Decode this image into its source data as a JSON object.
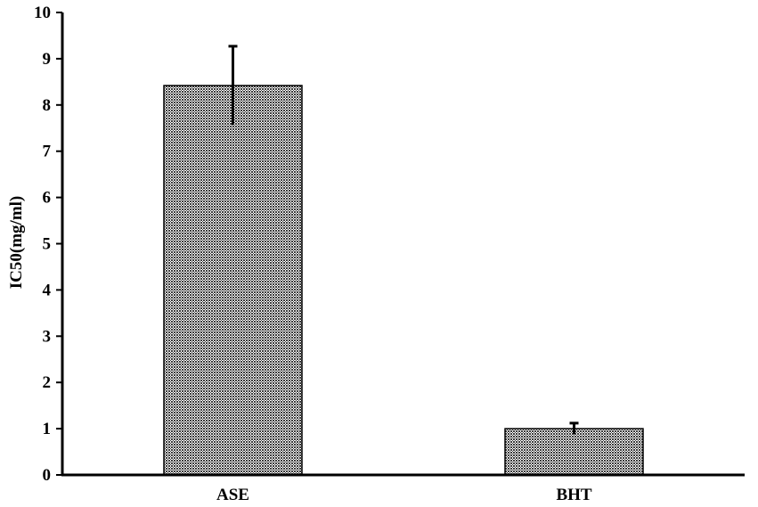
{
  "chart_data": {
    "type": "bar",
    "categories": [
      "ASE",
      "BHT"
    ],
    "values": [
      8.42,
      1.0
    ],
    "errors": [
      0.85,
      0.12
    ],
    "title": "",
    "xlabel": "",
    "ylabel": "IC50(mg/ml)",
    "ylim": [
      0,
      10
    ],
    "yticks": [
      "0",
      "1",
      "2",
      "3",
      "4",
      "5",
      "6",
      "7",
      "8",
      "9",
      "10"
    ],
    "grid": false,
    "legend": "none",
    "bar_pattern": "stippled dark grey",
    "colors": {
      "bar_fill": "#4a4a4a",
      "bar_stroke": "#000000",
      "axis": "#000000"
    }
  }
}
